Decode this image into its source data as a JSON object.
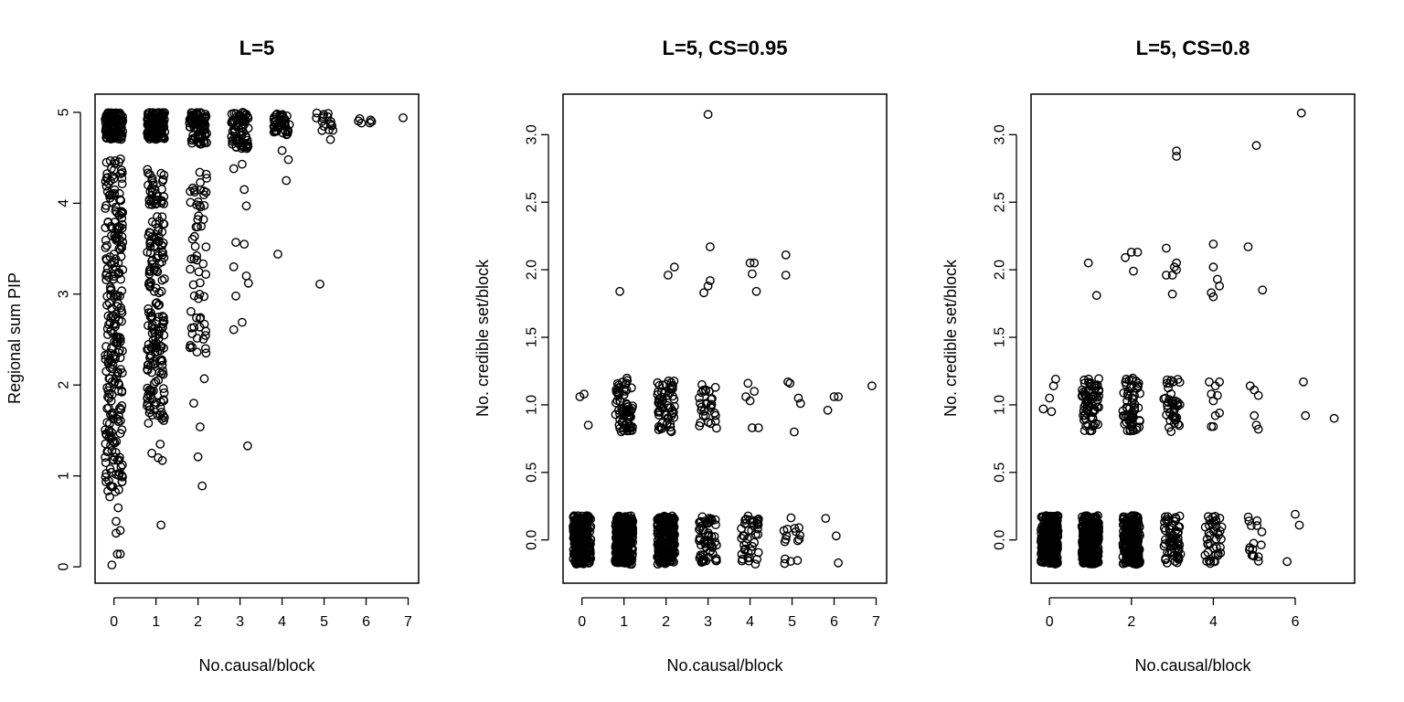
{
  "chart_data": [
    {
      "type": "scatter",
      "title": "L=5",
      "xlabel": "No.causal/block",
      "ylabel": "Regional sum PIP",
      "xlim": [
        -0.45,
        7.25
      ],
      "ylim": [
        -0.18,
        5.2
      ],
      "xticks": [
        0,
        1,
        2,
        3,
        4,
        5,
        6,
        7
      ],
      "xticklabels": [
        "0",
        "1",
        "2",
        "3",
        "4",
        "5",
        "6",
        "7"
      ],
      "yticks": [
        0,
        1,
        2,
        3,
        4,
        5
      ],
      "yticklabels": [
        "0",
        "1",
        "2",
        "3",
        "4",
        "5"
      ],
      "groups": [
        {
          "x": 0,
          "dense": [
            [
              4.7,
              5.0,
              120
            ],
            [
              0.8,
              4.5,
              260
            ]
          ],
          "points": [
            [
              -0.05,
              0.02
            ],
            [
              0.08,
              0.14
            ],
            [
              0.15,
              0.14
            ],
            [
              0.05,
              0.37
            ],
            [
              0.15,
              0.4
            ],
            [
              -0.1,
              0.77
            ],
            [
              0.1,
              0.65
            ],
            [
              0.05,
              0.5
            ]
          ]
        },
        {
          "x": 1,
          "dense": [
            [
              4.7,
              5.0,
              120
            ],
            [
              1.6,
              4.4,
              200
            ]
          ],
          "points": [
            [
              -0.18,
              1.58
            ],
            [
              -0.1,
              1.25
            ],
            [
              0.05,
              1.2
            ],
            [
              0.15,
              1.17
            ],
            [
              0.1,
              1.35
            ],
            [
              0.12,
              0.46
            ]
          ]
        },
        {
          "x": 2,
          "dense": [
            [
              4.65,
              5.0,
              80
            ],
            [
              2.3,
              4.45,
              60
            ]
          ],
          "points": [
            [
              -0.1,
              1.8
            ],
            [
              0.05,
              1.54
            ],
            [
              0.0,
              1.21
            ],
            [
              0.1,
              0.89
            ],
            [
              0.18,
              2.4
            ],
            [
              0.15,
              2.07
            ]
          ]
        },
        {
          "x": 3,
          "dense": [
            [
              4.6,
              5.0,
              70
            ]
          ],
          "points": [
            [
              -0.15,
              4.38
            ],
            [
              0.05,
              4.43
            ],
            [
              0.1,
              4.15
            ],
            [
              0.15,
              3.97
            ],
            [
              -0.1,
              3.57
            ],
            [
              0.1,
              3.55
            ],
            [
              -0.15,
              3.3
            ],
            [
              0.15,
              3.2
            ],
            [
              0.2,
              3.12
            ],
            [
              -0.1,
              2.98
            ],
            [
              0.05,
              2.69
            ],
            [
              -0.15,
              2.61
            ],
            [
              0.18,
              1.33
            ]
          ]
        },
        {
          "x": 4,
          "dense": [
            [
              4.75,
              5.0,
              40
            ]
          ],
          "points": [
            [
              0.0,
              4.58
            ],
            [
              0.15,
              4.48
            ],
            [
              0.1,
              4.25
            ],
            [
              -0.1,
              3.44
            ]
          ]
        },
        {
          "x": 5,
          "dense": [
            [
              4.8,
              5.0,
              14
            ]
          ],
          "points": [
            [
              -0.05,
              4.9
            ],
            [
              -0.05,
              4.8
            ],
            [
              0.15,
              4.7
            ],
            [
              -0.1,
              3.11
            ]
          ]
        },
        {
          "x": 6,
          "dense": [
            [
              4.87,
              4.98,
              6
            ]
          ],
          "points": []
        },
        {
          "x": 7,
          "dense": [],
          "points": [
            [
              -0.12,
              4.94
            ]
          ]
        }
      ]
    },
    {
      "type": "scatter",
      "title": "L=5, CS=0.95",
      "xlabel": "No.causal/block",
      "ylabel": "No. credible set/block",
      "xlim": [
        -0.45,
        7.25
      ],
      "ylim": [
        -0.32,
        3.3
      ],
      "xticks": [
        0,
        1,
        2,
        3,
        4,
        5,
        6,
        7
      ],
      "xticklabels": [
        "0",
        "1",
        "2",
        "3",
        "4",
        "5",
        "6",
        "7"
      ],
      "yticks": [
        0,
        0.5,
        1,
        1.5,
        2,
        2.5,
        3
      ],
      "yticklabels": [
        "0.0",
        "0.5",
        "1.0",
        "1.5",
        "2.0",
        "2.5",
        "3.0"
      ],
      "groups": [
        {
          "x": 0,
          "dense": [
            [
              -0.18,
              0.18,
              300
            ]
          ],
          "points": [
            [
              -0.05,
              1.06
            ],
            [
              0.05,
              1.08
            ],
            [
              0.15,
              0.85
            ]
          ]
        },
        {
          "x": 1,
          "dense": [
            [
              -0.18,
              0.18,
              280
            ],
            [
              0.8,
              1.2,
              70
            ]
          ],
          "points": [
            [
              -0.1,
              1.84
            ]
          ]
        },
        {
          "x": 2,
          "dense": [
            [
              -0.18,
              0.18,
              220
            ],
            [
              0.8,
              1.2,
              60
            ]
          ],
          "points": [
            [
              0.05,
              1.96
            ],
            [
              0.2,
              2.02
            ]
          ]
        },
        {
          "x": 3,
          "dense": [
            [
              -0.18,
              0.18,
              60
            ],
            [
              0.8,
              1.18,
              30
            ]
          ],
          "points": [
            [
              -0.1,
              1.83
            ],
            [
              0.0,
              1.88
            ],
            [
              0.05,
              1.92
            ],
            [
              0.05,
              2.17
            ],
            [
              0.0,
              3.15
            ]
          ]
        },
        {
          "x": 4,
          "dense": [
            [
              -0.18,
              0.18,
              40
            ]
          ],
          "points": [
            [
              0.0,
              2.05
            ],
            [
              0.1,
              2.05
            ],
            [
              0.05,
              1.97
            ],
            [
              0.15,
              1.84
            ],
            [
              -0.05,
              1.16
            ],
            [
              0.1,
              1.1
            ],
            [
              -0.1,
              1.06
            ],
            [
              0.0,
              1.03
            ],
            [
              0.05,
              0.83
            ],
            [
              0.2,
              0.83
            ]
          ]
        },
        {
          "x": 5,
          "dense": [
            [
              -0.18,
              0.18,
              16
            ]
          ],
          "points": [
            [
              -0.15,
              2.11
            ],
            [
              -0.15,
              1.96
            ],
            [
              -0.1,
              1.17
            ],
            [
              -0.05,
              1.16
            ],
            [
              0.15,
              1.05
            ],
            [
              0.2,
              1.01
            ],
            [
              0.05,
              0.8
            ]
          ]
        },
        {
          "x": 6,
          "dense": [],
          "points": [
            [
              -0.15,
              0.96
            ],
            [
              0.0,
              1.06
            ],
            [
              0.1,
              1.06
            ],
            [
              -0.2,
              0.16
            ],
            [
              0.05,
              0.03
            ],
            [
              0.1,
              -0.17
            ]
          ]
        },
        {
          "x": 7,
          "dense": [],
          "points": [
            [
              -0.1,
              1.14
            ]
          ]
        }
      ]
    },
    {
      "type": "scatter",
      "title": "L=5, CS=0.8",
      "xlabel": "No.causal/block",
      "ylabel": "No. credible set/block",
      "xlim": [
        -0.45,
        7.45
      ],
      "ylim": [
        -0.32,
        3.3
      ],
      "xticks": [
        0,
        2,
        4,
        6
      ],
      "xticklabels": [
        "0",
        "2",
        "4",
        "6"
      ],
      "yticks": [
        0,
        0.5,
        1,
        1.5,
        2,
        2.5,
        3
      ],
      "yticklabels": [
        "0.0",
        "0.5",
        "1.0",
        "1.5",
        "2.0",
        "2.5",
        "3.0"
      ],
      "groups": [
        {
          "x": 0,
          "dense": [
            [
              -0.18,
              0.18,
              300
            ]
          ],
          "points": [
            [
              -0.15,
              0.97
            ],
            [
              0.05,
              0.95
            ],
            [
              0.1,
              1.14
            ],
            [
              0.15,
              1.19
            ],
            [
              0.0,
              1.05
            ]
          ]
        },
        {
          "x": 1,
          "dense": [
            [
              -0.18,
              0.18,
              280
            ],
            [
              0.8,
              1.2,
              70
            ]
          ],
          "points": [
            [
              -0.05,
              2.05
            ],
            [
              0.15,
              1.81
            ]
          ]
        },
        {
          "x": 2,
          "dense": [
            [
              -0.18,
              0.18,
              220
            ],
            [
              0.8,
              1.2,
              60
            ]
          ],
          "points": [
            [
              -0.15,
              2.09
            ],
            [
              0.0,
              2.13
            ],
            [
              0.15,
              2.13
            ],
            [
              0.05,
              1.99
            ]
          ]
        },
        {
          "x": 3,
          "dense": [
            [
              -0.18,
              0.18,
              60
            ],
            [
              0.8,
              1.2,
              40
            ]
          ],
          "points": [
            [
              -0.15,
              2.16
            ],
            [
              -0.15,
              1.96
            ],
            [
              0.0,
              1.96
            ],
            [
              0.05,
              2.02
            ],
            [
              0.1,
              2.05
            ],
            [
              0.1,
              2.0
            ],
            [
              0.0,
              1.82
            ],
            [
              0.1,
              2.88
            ],
            [
              0.1,
              2.84
            ]
          ]
        },
        {
          "x": 4,
          "dense": [
            [
              -0.18,
              0.18,
              40
            ]
          ],
          "points": [
            [
              0.0,
              2.19
            ],
            [
              0.0,
              2.02
            ],
            [
              0.1,
              1.93
            ],
            [
              0.15,
              1.88
            ],
            [
              -0.05,
              1.83
            ],
            [
              0.0,
              1.8
            ],
            [
              -0.1,
              1.17
            ],
            [
              0.05,
              1.14
            ],
            [
              0.15,
              1.17
            ],
            [
              -0.05,
              1.08
            ],
            [
              0.1,
              1.07
            ],
            [
              0.0,
              1.03
            ],
            [
              0.15,
              0.94
            ],
            [
              0.05,
              0.92
            ],
            [
              -0.05,
              0.84
            ],
            [
              0.0,
              0.84
            ]
          ]
        },
        {
          "x": 5,
          "dense": [
            [
              -0.18,
              0.18,
              16
            ]
          ],
          "points": [
            [
              -0.15,
              2.17
            ],
            [
              0.05,
              2.92
            ],
            [
              0.2,
              1.85
            ],
            [
              -0.1,
              1.14
            ],
            [
              0.0,
              1.11
            ],
            [
              0.1,
              1.07
            ],
            [
              0.0,
              0.92
            ],
            [
              0.05,
              0.85
            ],
            [
              0.1,
              0.82
            ]
          ]
        },
        {
          "x": 6,
          "dense": [],
          "points": [
            [
              0.15,
              3.16
            ],
            [
              0.2,
              1.17
            ],
            [
              0.25,
              0.92
            ],
            [
              0.0,
              0.19
            ],
            [
              0.1,
              0.11
            ],
            [
              -0.2,
              -0.16
            ]
          ]
        },
        {
          "x": 7,
          "dense": [],
          "points": [
            [
              -0.05,
              0.9
            ]
          ]
        }
      ]
    }
  ]
}
